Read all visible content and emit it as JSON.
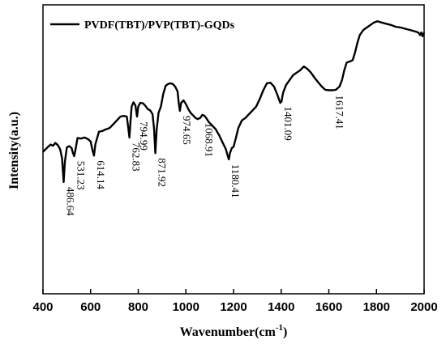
{
  "chart_data": {
    "type": "line",
    "title": "",
    "xlabel": "Wavenumber(cm",
    "xlabel_sup": "-1",
    "xlabel_tail": ")",
    "ylabel": "Intensity(a.u.)",
    "xlim": [
      400,
      2000
    ],
    "x_ticks": [
      "400",
      "600",
      "800",
      "1000",
      "1200",
      "1400",
      "1600",
      "1800",
      "2000"
    ],
    "x_tick_values": [
      400,
      600,
      800,
      1000,
      1200,
      1400,
      1600,
      1800,
      2000
    ],
    "legend": {
      "position": "top-left",
      "entries": [
        "PVDF(TBT)/PVP(TBT)-GQDs"
      ]
    },
    "grid": false,
    "series": [
      {
        "name": "PVDF(TBT)/PVP(TBT)-GQDs",
        "color": "#000000",
        "points": [
          [
            400,
            0.565
          ],
          [
            410,
            0.574
          ],
          [
            420,
            0.584
          ],
          [
            432,
            0.594
          ],
          [
            442,
            0.589
          ],
          [
            452,
            0.6
          ],
          [
            462,
            0.592
          ],
          [
            472,
            0.575
          ],
          [
            480,
            0.54
          ],
          [
            486.64,
            0.445
          ],
          [
            492,
            0.525
          ],
          [
            500,
            0.582
          ],
          [
            510,
            0.588
          ],
          [
            520,
            0.58
          ],
          [
            526,
            0.56
          ],
          [
            531.23,
            0.548
          ],
          [
            536,
            0.572
          ],
          [
            545,
            0.62
          ],
          [
            560,
            0.618
          ],
          [
            575,
            0.622
          ],
          [
            590,
            0.615
          ],
          [
            600,
            0.606
          ],
          [
            607,
            0.575
          ],
          [
            614.14,
            0.55
          ],
          [
            620,
            0.595
          ],
          [
            635,
            0.645
          ],
          [
            650,
            0.648
          ],
          [
            665,
            0.655
          ],
          [
            680,
            0.66
          ],
          [
            695,
            0.675
          ],
          [
            710,
            0.69
          ],
          [
            725,
            0.705
          ],
          [
            740,
            0.708
          ],
          [
            752,
            0.705
          ],
          [
            758,
            0.66
          ],
          [
            762.83,
            0.622
          ],
          [
            767,
            0.68
          ],
          [
            772,
            0.745
          ],
          [
            780,
            0.762
          ],
          [
            788,
            0.75
          ],
          [
            794.99,
            0.705
          ],
          [
            800,
            0.745
          ],
          [
            808,
            0.76
          ],
          [
            820,
            0.758
          ],
          [
            830,
            0.748
          ],
          [
            840,
            0.735
          ],
          [
            850,
            0.73
          ],
          [
            860,
            0.715
          ],
          [
            866,
            0.66
          ],
          [
            871.92,
            0.56
          ],
          [
            877,
            0.65
          ],
          [
            885,
            0.72
          ],
          [
            895,
            0.745
          ],
          [
            905,
            0.795
          ],
          [
            915,
            0.828
          ],
          [
            925,
            0.835
          ],
          [
            935,
            0.838
          ],
          [
            945,
            0.835
          ],
          [
            955,
            0.825
          ],
          [
            965,
            0.805
          ],
          [
            970,
            0.76
          ],
          [
            974.65,
            0.728
          ],
          [
            980,
            0.76
          ],
          [
            990,
            0.77
          ],
          [
            1000,
            0.755
          ],
          [
            1010,
            0.735
          ],
          [
            1020,
            0.72
          ],
          [
            1030,
            0.71
          ],
          [
            1040,
            0.7
          ],
          [
            1050,
            0.695
          ],
          [
            1060,
            0.7
          ],
          [
            1068.91,
            0.712
          ],
          [
            1076,
            0.71
          ],
          [
            1085,
            0.7
          ],
          [
            1095,
            0.685
          ],
          [
            1110,
            0.67
          ],
          [
            1125,
            0.655
          ],
          [
            1140,
            0.63
          ],
          [
            1155,
            0.6
          ],
          [
            1168,
            0.575
          ],
          [
            1175,
            0.55
          ],
          [
            1180.41,
            0.535
          ],
          [
            1185,
            0.56
          ],
          [
            1193,
            0.58
          ],
          [
            1200,
            0.585
          ],
          [
            1210,
            0.62
          ],
          [
            1220,
            0.66
          ],
          [
            1235,
            0.69
          ],
          [
            1250,
            0.7
          ],
          [
            1265,
            0.715
          ],
          [
            1280,
            0.73
          ],
          [
            1295,
            0.745
          ],
          [
            1310,
            0.775
          ],
          [
            1325,
            0.81
          ],
          [
            1340,
            0.838
          ],
          [
            1355,
            0.84
          ],
          [
            1370,
            0.825
          ],
          [
            1385,
            0.79
          ],
          [
            1396,
            0.76
          ],
          [
            1401.09,
            0.765
          ],
          [
            1408,
            0.8
          ],
          [
            1420,
            0.83
          ],
          [
            1435,
            0.85
          ],
          [
            1450,
            0.87
          ],
          [
            1465,
            0.88
          ],
          [
            1480,
            0.89
          ],
          [
            1495,
            0.905
          ],
          [
            1510,
            0.895
          ],
          [
            1525,
            0.88
          ],
          [
            1540,
            0.86
          ],
          [
            1555,
            0.842
          ],
          [
            1570,
            0.825
          ],
          [
            1585,
            0.812
          ],
          [
            1600,
            0.81
          ],
          [
            1617.41,
            0.81
          ],
          [
            1630,
            0.812
          ],
          [
            1645,
            0.825
          ],
          [
            1655,
            0.85
          ],
          [
            1665,
            0.89
          ],
          [
            1675,
            0.92
          ],
          [
            1690,
            0.925
          ],
          [
            1700,
            0.93
          ],
          [
            1710,
            0.96
          ],
          [
            1720,
            1.0
          ],
          [
            1730,
            1.03
          ],
          [
            1745,
            1.05
          ],
          [
            1760,
            1.06
          ],
          [
            1775,
            1.07
          ],
          [
            1790,
            1.08
          ],
          [
            1805,
            1.085
          ],
          [
            1820,
            1.08
          ],
          [
            1840,
            1.075
          ],
          [
            1860,
            1.07
          ],
          [
            1880,
            1.063
          ],
          [
            1900,
            1.06
          ],
          [
            1920,
            1.055
          ],
          [
            1940,
            1.05
          ],
          [
            1960,
            1.045
          ],
          [
            1975,
            1.04
          ],
          [
            1983,
            1.03
          ],
          [
            1988,
            1.04
          ],
          [
            1993,
            1.025
          ],
          [
            2000,
            1.04
          ]
        ]
      }
    ],
    "annotations": [
      {
        "label": "486.64",
        "x": 486.64,
        "anchor_y": 0.445
      },
      {
        "label": "531.23",
        "x": 531.23,
        "anchor_y": 0.548
      },
      {
        "label": "614.14",
        "x": 614.14,
        "anchor_y": 0.55
      },
      {
        "label": "762.83",
        "x": 762.83,
        "anchor_y": 0.622
      },
      {
        "label": "794.99",
        "x": 794.99,
        "anchor_y": 0.705
      },
      {
        "label": "871.92",
        "x": 871.92,
        "anchor_y": 0.56
      },
      {
        "label": "974.65",
        "x": 974.65,
        "anchor_y": 0.728
      },
      {
        "label": "1068.91",
        "x": 1068.91,
        "anchor_y": 0.7
      },
      {
        "label": "1180.41",
        "x": 1180.41,
        "anchor_y": 0.535
      },
      {
        "label": "1401.09",
        "x": 1401.09,
        "anchor_y": 0.765
      },
      {
        "label": "1617.41",
        "x": 1617.41,
        "anchor_y": 0.81
      }
    ]
  }
}
